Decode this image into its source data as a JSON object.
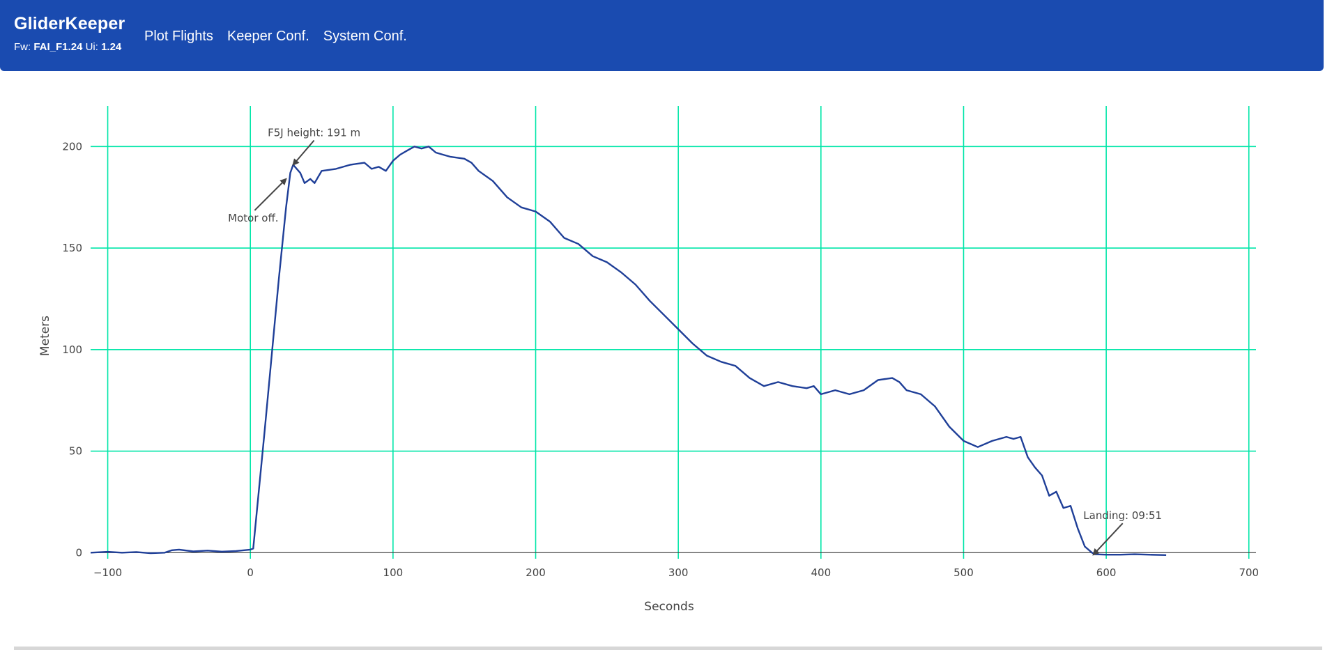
{
  "navbar": {
    "brand": "GliderKeeper",
    "fw_label": "Fw:",
    "fw_value": "FAI_F1.24",
    "ui_label": "Ui:",
    "ui_value": "1.24",
    "links": [
      "Plot Flights",
      "Keeper Conf.",
      "System Conf."
    ]
  },
  "colors": {
    "navbar_bg": "#1a4bb0",
    "grid": "#00e6a8",
    "line": "#1f3f98",
    "text": "#444444"
  },
  "chart_data": {
    "type": "line",
    "xlabel": "Seconds",
    "ylabel": "Meters",
    "xlim": [
      -112,
      705
    ],
    "ylim": [
      -3,
      220
    ],
    "x_ticks": [
      -100,
      0,
      100,
      200,
      300,
      400,
      500,
      600,
      700
    ],
    "x_tick_labels": [
      "−100",
      "0",
      "100",
      "200",
      "300",
      "400",
      "500",
      "600",
      "700"
    ],
    "y_ticks": [
      0,
      50,
      100,
      150,
      200
    ],
    "y_tick_labels": [
      "0",
      "50",
      "100",
      "150",
      "200"
    ],
    "grid": true,
    "series": [
      {
        "x": [
          -112,
          -100,
          -90,
          -80,
          -70,
          -60,
          -55,
          -50,
          -40,
          -30,
          -20,
          -10,
          0,
          2,
          10,
          20,
          25,
          28,
          30,
          35,
          38,
          42,
          45,
          50,
          60,
          70,
          80,
          85,
          90,
          95,
          100,
          105,
          110,
          115,
          120,
          125,
          130,
          135,
          140,
          150,
          155,
          160,
          170,
          180,
          190,
          200,
          210,
          220,
          230,
          240,
          250,
          260,
          270,
          280,
          290,
          300,
          310,
          320,
          330,
          340,
          350,
          360,
          370,
          380,
          390,
          395,
          400,
          410,
          420,
          430,
          440,
          450,
          455,
          460,
          470,
          480,
          490,
          500,
          510,
          520,
          530,
          535,
          540,
          545,
          550,
          555,
          560,
          565,
          570,
          575,
          580,
          585,
          590,
          592,
          600,
          610,
          620,
          630,
          642
        ],
        "y": [
          0,
          0.4,
          0,
          0.3,
          -0.3,
          0,
          1.2,
          1.5,
          0.6,
          1,
          0.5,
          0.8,
          1.5,
          2,
          60,
          135,
          170,
          187,
          191,
          187,
          182,
          184,
          182,
          188,
          189,
          191,
          192,
          189,
          190,
          188,
          193,
          196,
          198,
          200,
          199,
          200,
          197,
          196,
          195,
          194,
          192,
          188,
          183,
          175,
          170,
          168,
          163,
          155,
          152,
          146,
          143,
          138,
          132,
          124,
          117,
          110,
          103,
          97,
          94,
          92,
          86,
          82,
          84,
          82,
          81,
          82,
          78,
          80,
          78,
          80,
          85,
          86,
          84,
          80,
          78,
          72,
          62,
          55,
          52,
          55,
          57,
          56,
          57,
          47,
          42,
          38,
          28,
          30,
          22,
          23,
          12,
          3,
          0,
          -0.8,
          -1,
          -1,
          -0.8,
          -1,
          -1.2
        ]
      }
    ],
    "annotations": [
      {
        "text": "F5J height: 191 m",
        "x": 30,
        "y": 191,
        "ax": 30,
        "ay": -35
      },
      {
        "text": "Motor off.",
        "x": 25,
        "y": 184,
        "ax": -45,
        "ay": 45
      },
      {
        "text": "Landing: 09:51",
        "x": 591,
        "y": -1,
        "ax": 42,
        "ay": -45
      }
    ]
  }
}
